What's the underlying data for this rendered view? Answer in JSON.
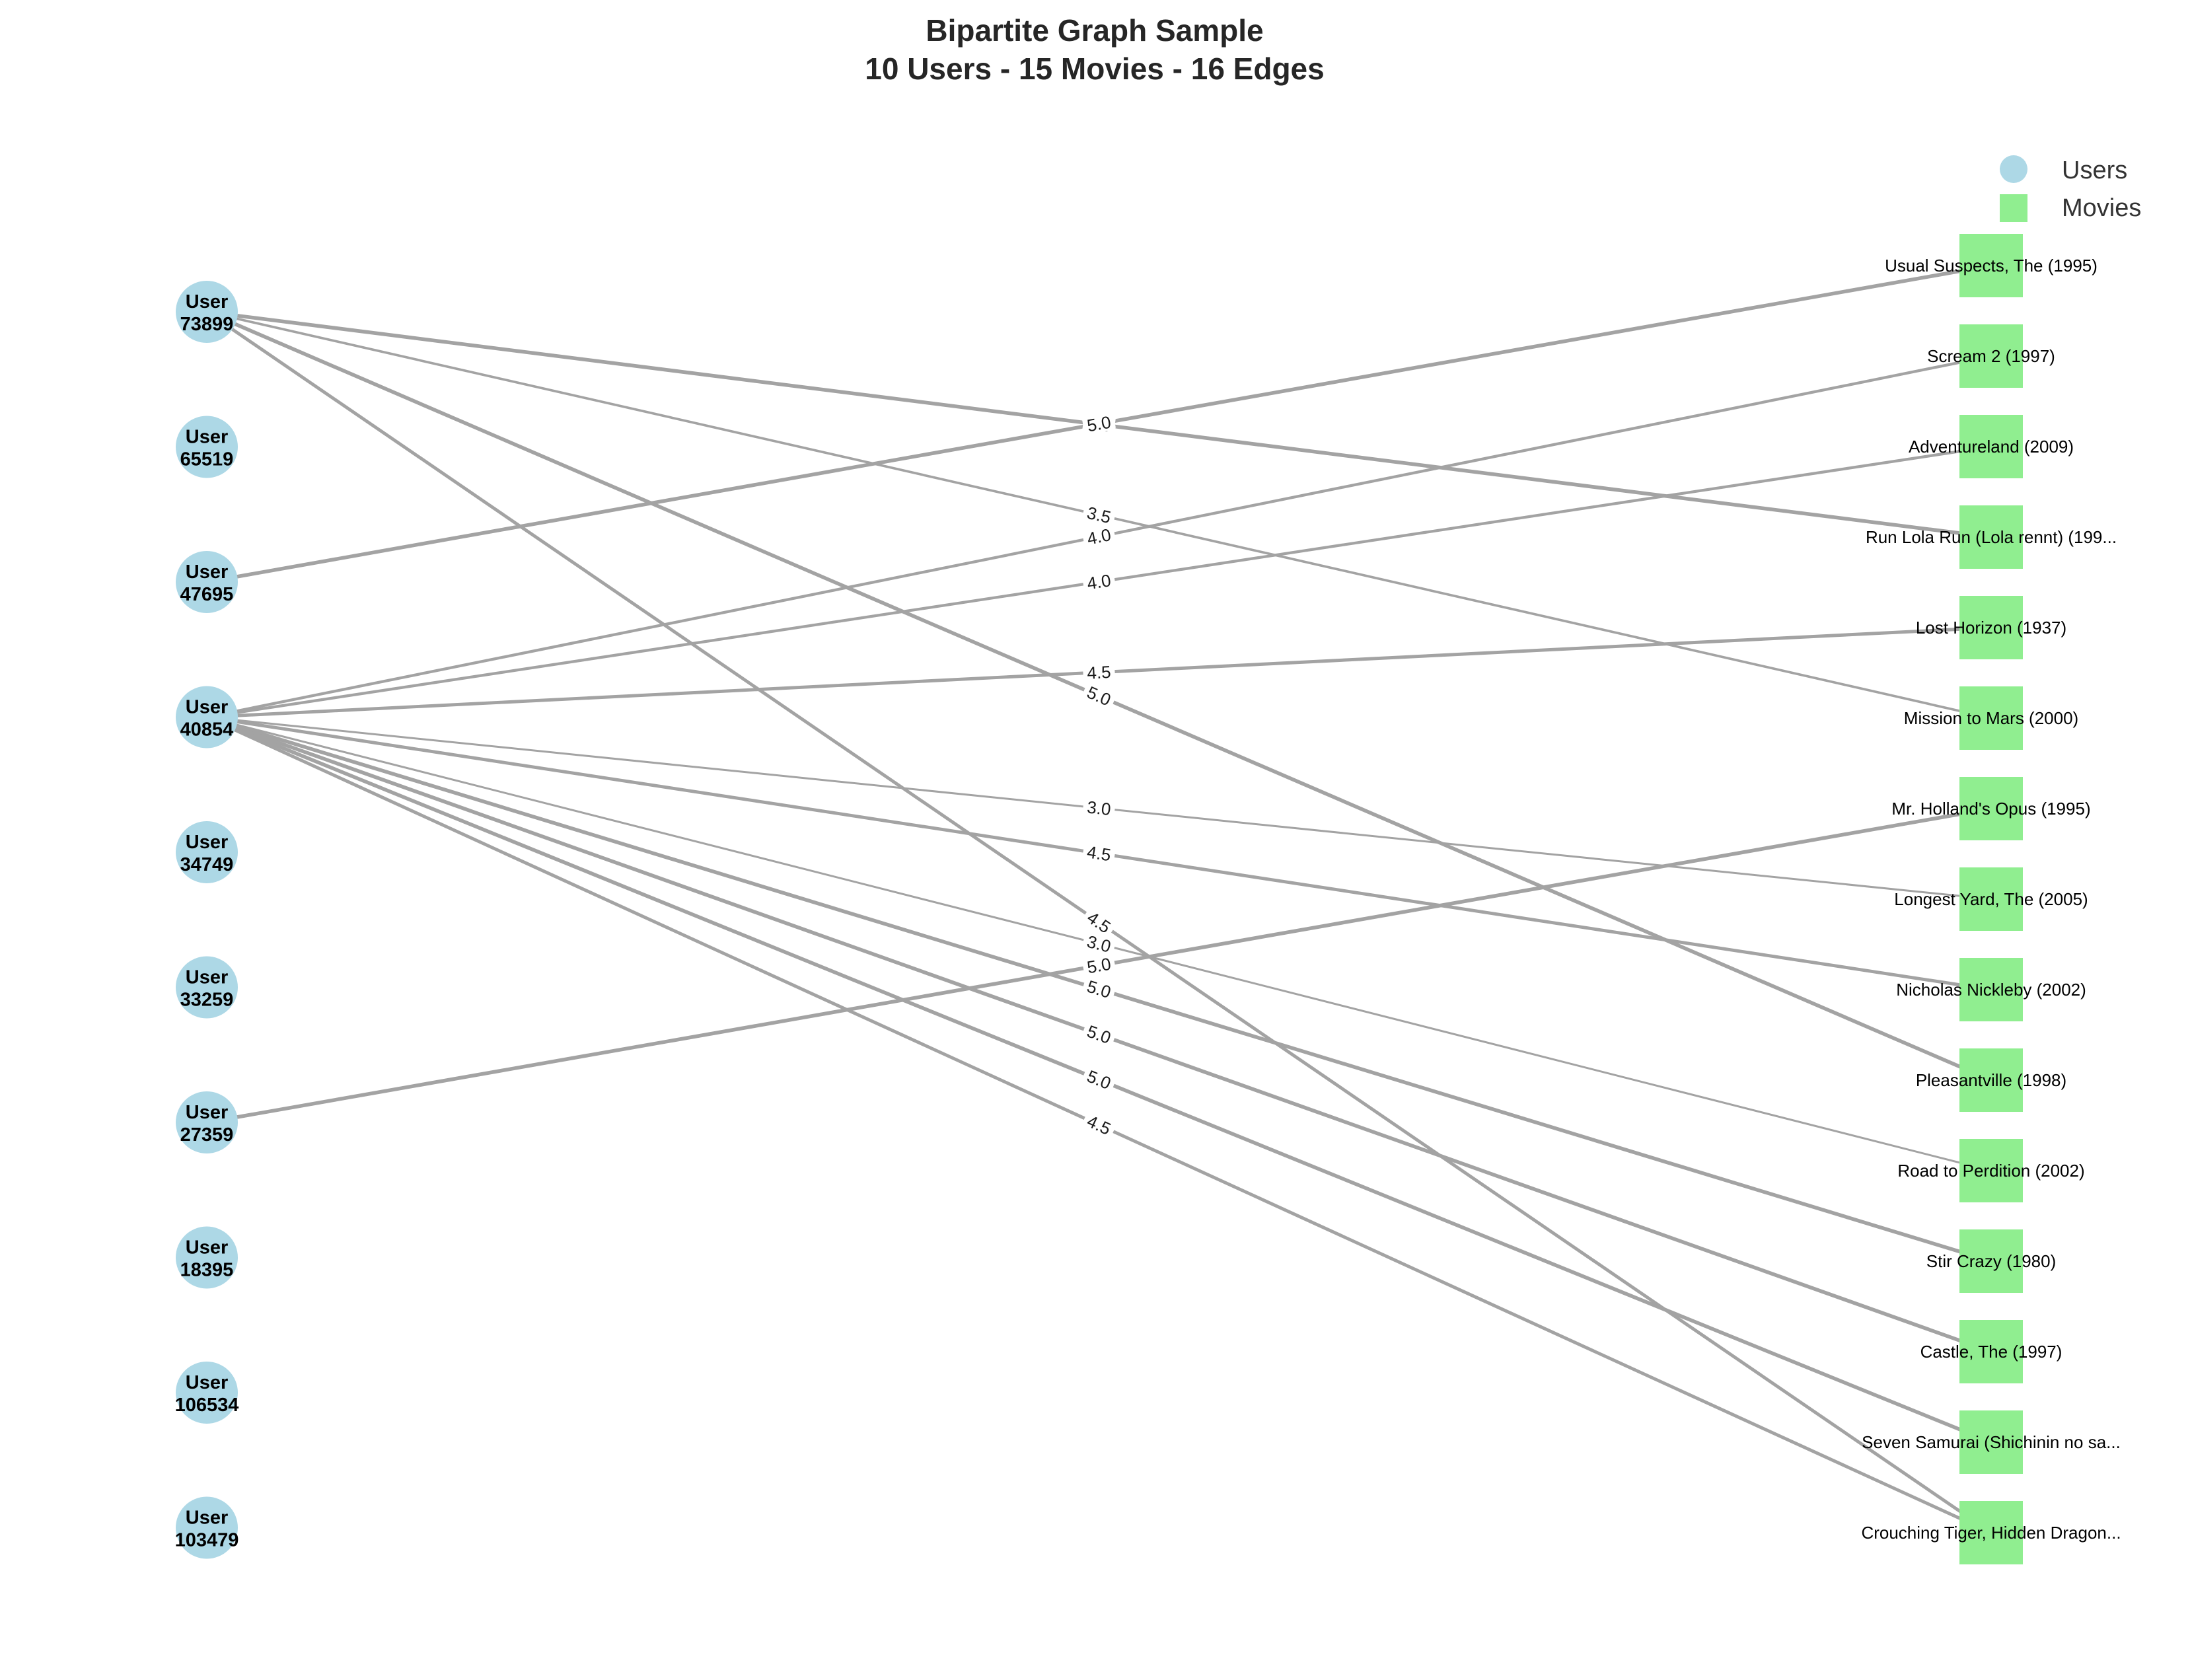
{
  "title": {
    "line1": "Bipartite Graph Sample",
    "line2": "10 Users - 15 Movies - 16 Edges"
  },
  "legend": {
    "users_label": "Users",
    "movies_label": "Movies"
  },
  "colors": {
    "user_node": "#add8e6",
    "movie_node": "#90ee90",
    "edge": "#a3a3a3"
  },
  "users": [
    {
      "line1": "User",
      "line2": "73899"
    },
    {
      "line1": "User",
      "line2": "65519"
    },
    {
      "line1": "User",
      "line2": "47695"
    },
    {
      "line1": "User",
      "line2": "40854"
    },
    {
      "line1": "User",
      "line2": "34749"
    },
    {
      "line1": "User",
      "line2": "33259"
    },
    {
      "line1": "User",
      "line2": "27359"
    },
    {
      "line1": "User",
      "line2": "18395"
    },
    {
      "line1": "User",
      "line2": "106534"
    },
    {
      "line1": "User",
      "line2": "103479"
    }
  ],
  "movies": [
    "Usual Suspects, The (1995)",
    "Scream 2 (1997)",
    "Adventureland (2009)",
    "Run Lola Run (Lola rennt) (199...",
    "Lost Horizon (1937)",
    "Mission to Mars (2000)",
    "Mr. Holland's Opus (1995)",
    "Longest Yard, The (2005)",
    "Nicholas Nickleby (2002)",
    "Pleasantville (1998)",
    "Road to Perdition (2002)",
    "Stir Crazy (1980)",
    "Castle, The (1997)",
    "Seven Samurai (Shichinin no sa...",
    "Crouching Tiger, Hidden Dragon..."
  ],
  "edges": [
    {
      "user": 0,
      "movie": 3,
      "rating": "5.0"
    },
    {
      "user": 0,
      "movie": 5,
      "rating": "3.5"
    },
    {
      "user": 0,
      "movie": 9,
      "rating": "5.0"
    },
    {
      "user": 0,
      "movie": 14,
      "rating": "4.5"
    },
    {
      "user": 2,
      "movie": 0,
      "rating": "5.0"
    },
    {
      "user": 3,
      "movie": 1,
      "rating": "4.0"
    },
    {
      "user": 3,
      "movie": 2,
      "rating": "4.0"
    },
    {
      "user": 3,
      "movie": 4,
      "rating": "4.5"
    },
    {
      "user": 3,
      "movie": 7,
      "rating": "3.0"
    },
    {
      "user": 3,
      "movie": 8,
      "rating": "4.5"
    },
    {
      "user": 3,
      "movie": 10,
      "rating": "3.0"
    },
    {
      "user": 3,
      "movie": 11,
      "rating": "5.0"
    },
    {
      "user": 3,
      "movie": 12,
      "rating": "5.0"
    },
    {
      "user": 3,
      "movie": 13,
      "rating": "5.0"
    },
    {
      "user": 3,
      "movie": 14,
      "rating": "4.5"
    },
    {
      "user": 6,
      "movie": 6,
      "rating": "5.0"
    }
  ]
}
